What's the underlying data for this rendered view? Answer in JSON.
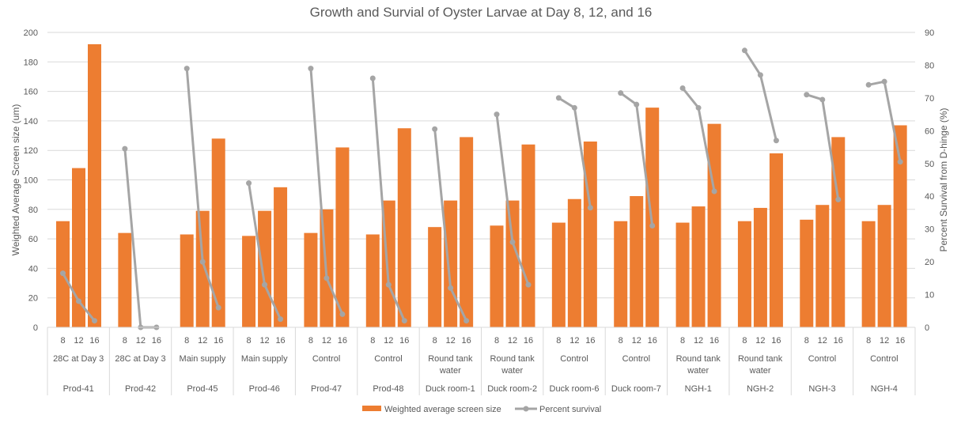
{
  "chart_data": {
    "type": "bar+line",
    "title": "Growth and Survial of Oyster Larvae at Day 8, 12, and 16",
    "ylabel": "Weighted Average Screen size (um)",
    "y2label": "Percent Survival from D-hinge (%)",
    "ylim": [
      0,
      200
    ],
    "y2lim": [
      0,
      90
    ],
    "yticks": [
      0,
      20,
      40,
      60,
      80,
      100,
      120,
      140,
      160,
      180,
      200
    ],
    "y2ticks": [
      0,
      10,
      20,
      30,
      40,
      50,
      60,
      70,
      80,
      90
    ],
    "grid": true,
    "legend_position": "bottom",
    "days": [
      "8",
      "12",
      "16"
    ],
    "groups": [
      {
        "treatment": "28C at Day 3",
        "site": "Prod-41",
        "size": [
          72,
          108,
          192
        ],
        "survival": [
          16.5,
          8,
          2
        ]
      },
      {
        "treatment": "28C at Day 3",
        "site": "Prod-42",
        "size": [
          64,
          null,
          null
        ],
        "survival": [
          54.5,
          0,
          0
        ]
      },
      {
        "treatment": "Main supply",
        "site": "Prod-45",
        "size": [
          63,
          79,
          128
        ],
        "survival": [
          79,
          20,
          6
        ]
      },
      {
        "treatment": "Main supply",
        "site": "Prod-46",
        "size": [
          62,
          79,
          95
        ],
        "survival": [
          44,
          13,
          2.5
        ]
      },
      {
        "treatment": "Control",
        "site": "Prod-47",
        "size": [
          64,
          80,
          122
        ],
        "survival": [
          79,
          15,
          4
        ]
      },
      {
        "treatment": "Control",
        "site": "Prod-48",
        "size": [
          63,
          86,
          135
        ],
        "survival": [
          76,
          13,
          2
        ]
      },
      {
        "treatment": "Round tank water",
        "site": "Duck room-1",
        "size": [
          68,
          86,
          129
        ],
        "survival": [
          60.5,
          12,
          2
        ]
      },
      {
        "treatment": "Round tank water",
        "site": "Duck room-2",
        "size": [
          69,
          86,
          124
        ],
        "survival": [
          65,
          26,
          13
        ]
      },
      {
        "treatment": "Control",
        "site": "Duck room-6",
        "size": [
          71,
          87,
          126
        ],
        "survival": [
          70,
          67,
          36.5
        ]
      },
      {
        "treatment": "Control",
        "site": "Duck room-7",
        "size": [
          72,
          89,
          149
        ],
        "survival": [
          71.5,
          68,
          31
        ]
      },
      {
        "treatment": "Round tank water",
        "site": "NGH-1",
        "size": [
          71,
          82,
          138
        ],
        "survival": [
          73,
          67,
          41.5
        ]
      },
      {
        "treatment": "Round tank water",
        "site": "NGH-2",
        "size": [
          72,
          81,
          118
        ],
        "survival": [
          84.5,
          77,
          57
        ]
      },
      {
        "treatment": "Control",
        "site": "NGH-3",
        "size": [
          73,
          83,
          129
        ],
        "survival": [
          71,
          69.5,
          39
        ]
      },
      {
        "treatment": "Control",
        "site": "NGH-4",
        "size": [
          72,
          83,
          137
        ],
        "survival": [
          74,
          75,
          50.5
        ]
      }
    ],
    "series": [
      {
        "name": "Weighted average screen size",
        "type": "bar",
        "axis": "primary",
        "color": "#ED7D31"
      },
      {
        "name": "Percent survival",
        "type": "line",
        "axis": "secondary",
        "color": "#A5A5A5"
      }
    ],
    "colors": {
      "grid": "#D9D9D9",
      "axis_text": "#595959",
      "title_text": "#595959"
    }
  }
}
